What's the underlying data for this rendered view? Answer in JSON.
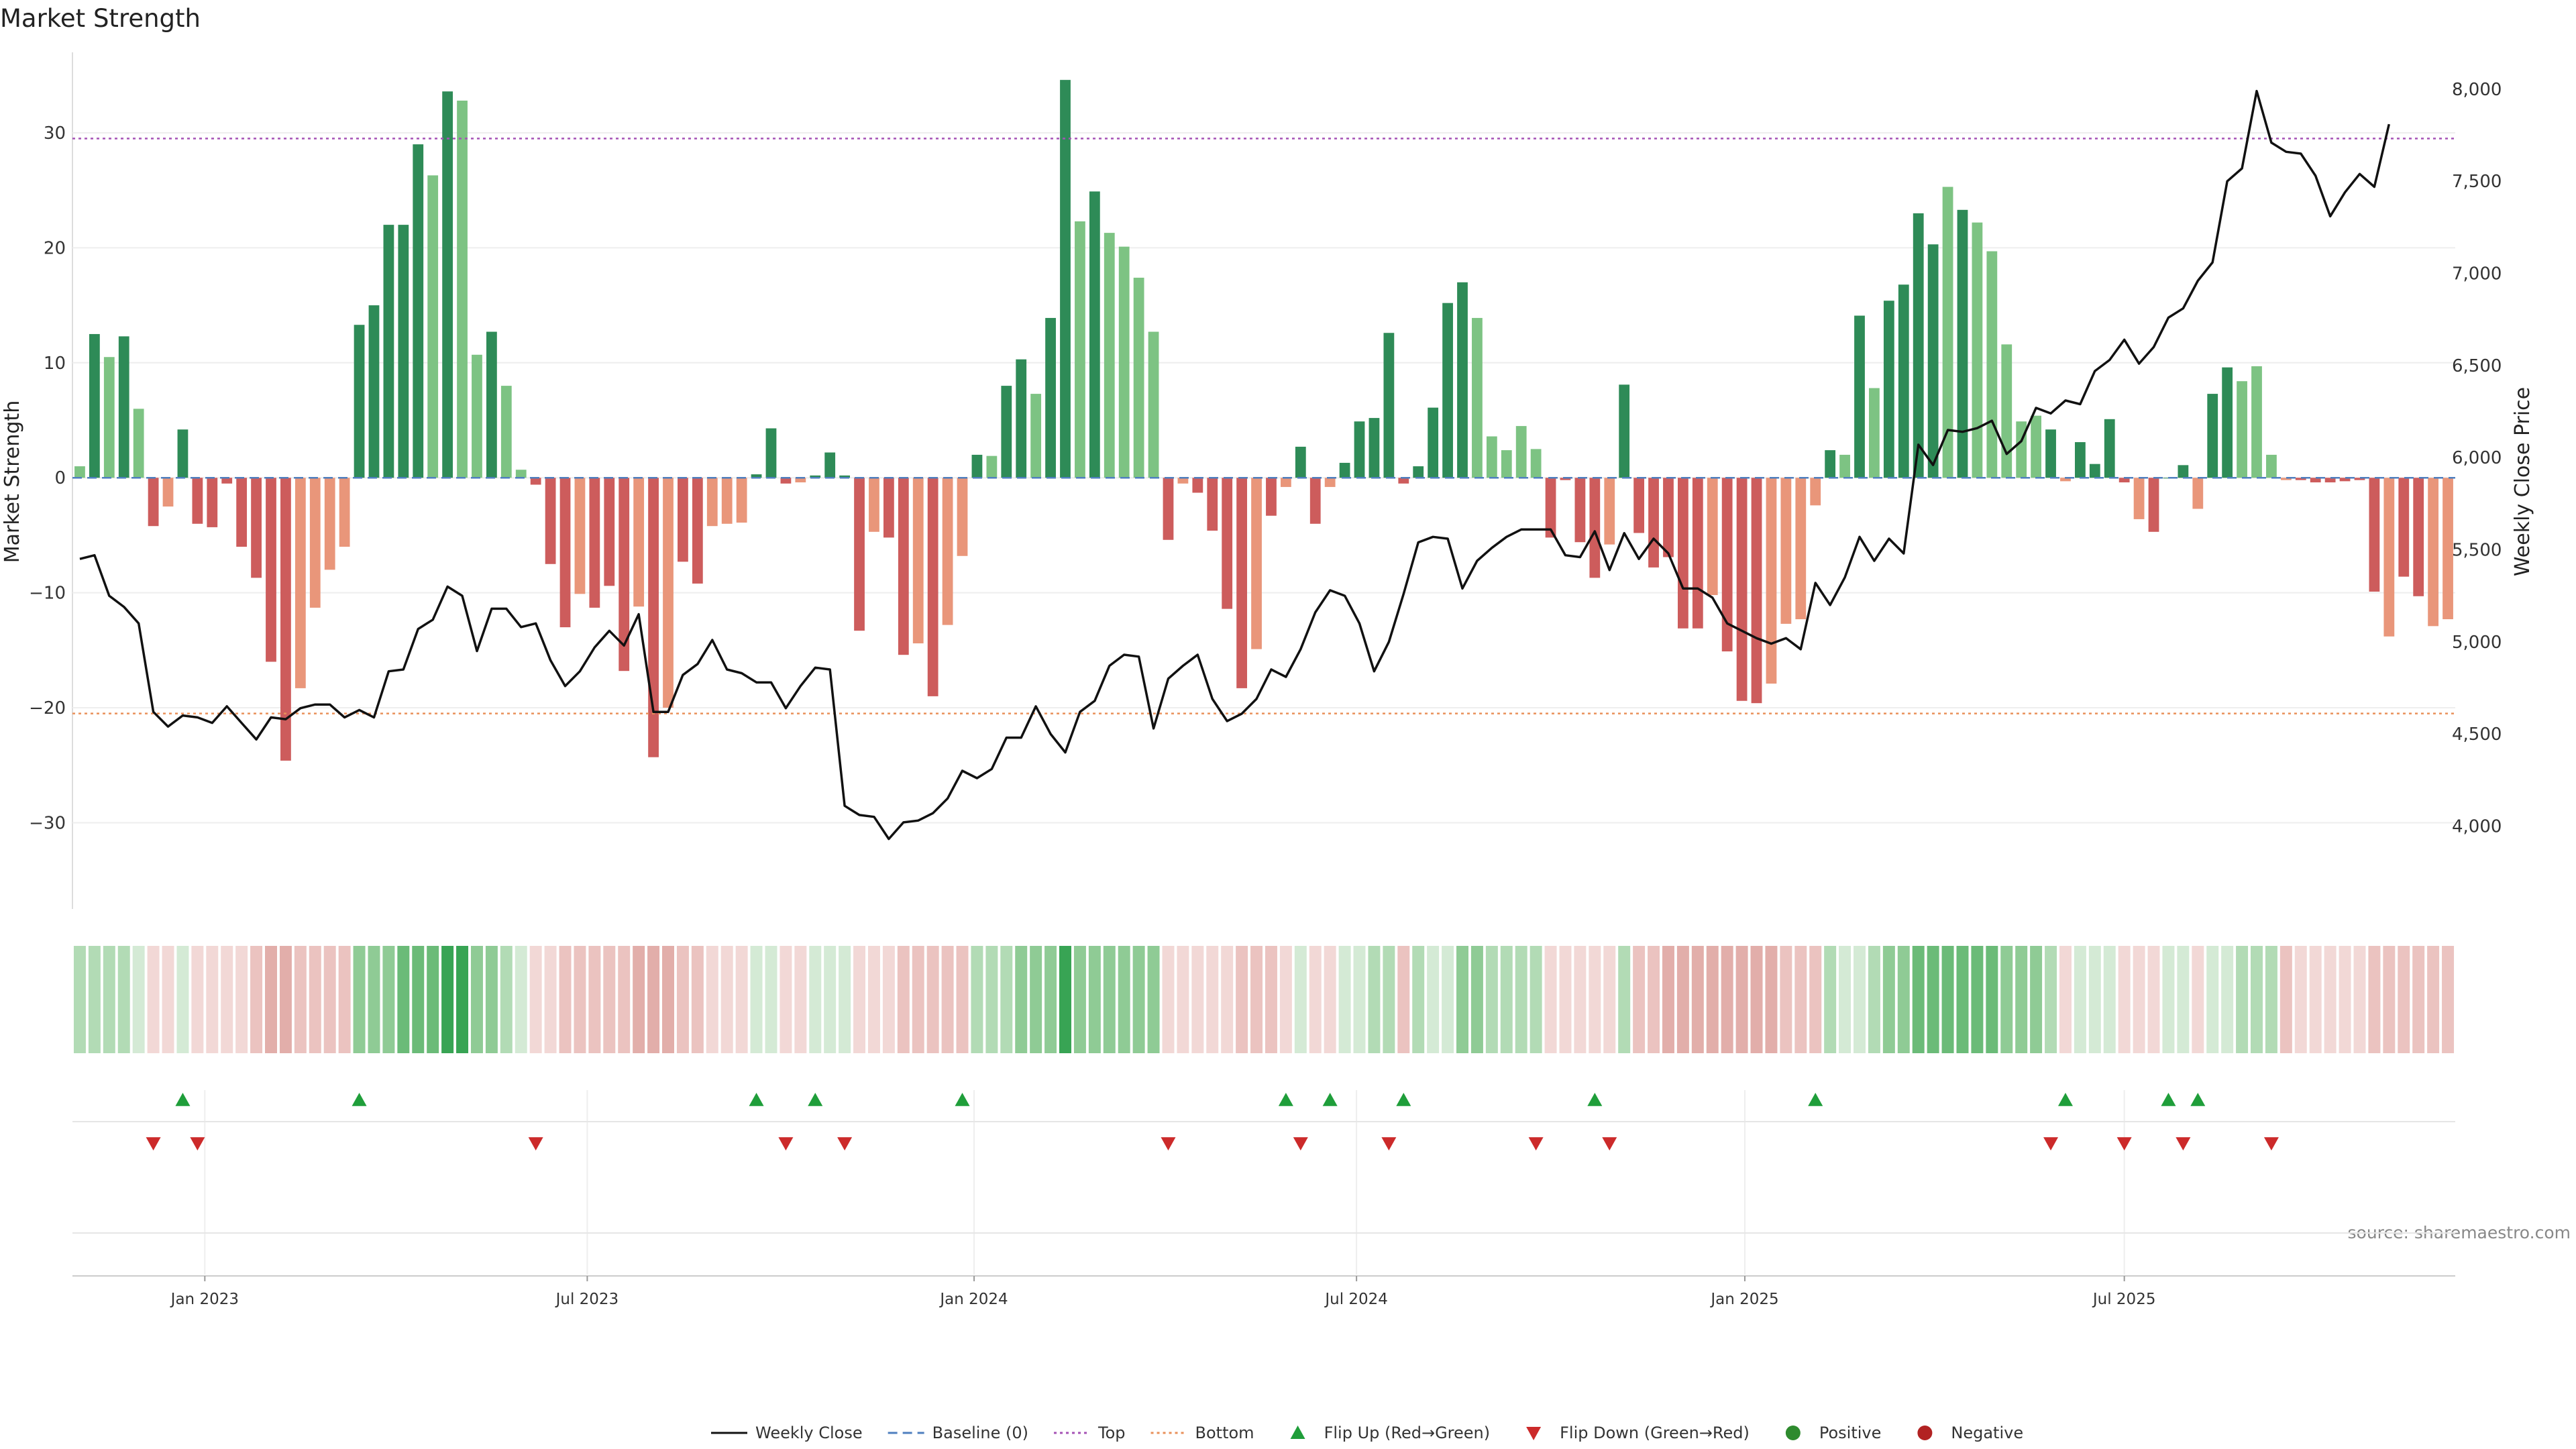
{
  "title": "Market Strength",
  "source": "source: sharemaestro.com",
  "colors": {
    "pos_strong": "#2e8b57",
    "pos_weak": "#7dc383",
    "neg_strong": "#cd5c5c",
    "neg_weak": "#e9967a",
    "price_line": "#111111",
    "baseline": "#4f7fbf",
    "top_line": "#a552b5",
    "bottom_line": "#e9905a",
    "flip_up": "#1f9e3a",
    "flip_down": "#cc2a2a",
    "positive_dot": "#2e8b2e",
    "negative_dot": "#b22222"
  },
  "chart_data": {
    "type": "bar",
    "title": "Market Strength",
    "ylabel_left": "Market Strength",
    "ylabel_right": "Weekly Close Price",
    "ylim_left": [
      -37.5,
      37
    ],
    "ylim_right": [
      3550,
      8200
    ],
    "yticks_left": [
      -30,
      -20,
      -10,
      0,
      10,
      20,
      30
    ],
    "ytick_labels_left": [
      "−30",
      "−20",
      "−10",
      "0",
      "10",
      "20",
      "30"
    ],
    "yticks_right": [
      4000,
      4500,
      5000,
      5500,
      6000,
      6500,
      7000,
      7500,
      8000
    ],
    "ytick_labels_right": [
      "4,000",
      "4,500",
      "5,000",
      "5,500",
      "6,000",
      "6,500",
      "7,000",
      "7,500",
      "8,000"
    ],
    "x_start_date": "2022-11-04",
    "x_ticks": [
      {
        "week": 8.5,
        "label": "Jan 2023"
      },
      {
        "week": 34.5,
        "label": "Jul 2023"
      },
      {
        "week": 60.8,
        "label": "Jan 2024"
      },
      {
        "week": 86.8,
        "label": "Jul 2024"
      },
      {
        "week": 113.2,
        "label": "Jan 2025"
      },
      {
        "week": 139.0,
        "label": "Jul 2025"
      }
    ],
    "top_level": 29.5,
    "bottom_level": -20.5,
    "strength": [
      1,
      12.5,
      10.5,
      12.3,
      6,
      -4.2,
      -2.5,
      4.2,
      -4,
      -4.3,
      -0.5,
      -6,
      -8.7,
      -16,
      -24.6,
      -18.3,
      -11.3,
      -8,
      -6,
      13.3,
      15,
      22,
      22,
      29,
      26.3,
      33.6,
      32.8,
      10.7,
      12.7,
      8,
      0.7,
      -0.6,
      -7.5,
      -13,
      -10.1,
      -11.3,
      -9.4,
      -16.8,
      -11.2,
      -24.3,
      -20,
      -7.3,
      -9.2,
      -4.2,
      -4,
      -3.9,
      0.3,
      4.3,
      -0.5,
      -0.4,
      0.2,
      2.2,
      0.2,
      -13.3,
      -4.7,
      -5.2,
      -15.4,
      -14.4,
      -19,
      -12.8,
      -6.8,
      2,
      1.9,
      8,
      10.3,
      7.3,
      13.9,
      34.6,
      22.3,
      24.9,
      21.3,
      20.1,
      17.4,
      12.7,
      -5.4,
      -0.5,
      -1.3,
      -4.6,
      -11.4,
      -18.3,
      -14.9,
      -3.3,
      -0.8,
      2.7,
      -4,
      -0.8,
      1.3,
      4.9,
      5.2,
      12.6,
      -0.5,
      1,
      6.1,
      15.2,
      17,
      13.9,
      3.6,
      2.4,
      4.5,
      2.5,
      -5.2,
      -0.2,
      -5.6,
      -8.7,
      -5.8,
      8.1,
      -4.8,
      -7.8,
      -6.9,
      -13.1,
      -13.1,
      -10.2,
      -15.1,
      -19.4,
      -19.6,
      -17.9,
      -12.7,
      -12.3,
      -2.4,
      2.4,
      2,
      14.1,
      7.8,
      15.4,
      16.8,
      23,
      20.3,
      25.3,
      23.3,
      22.2,
      19.7,
      11.6,
      4.9,
      5.4,
      4.2,
      -0.3,
      3.1,
      1.2,
      5.1,
      -0.4,
      -3.6,
      -4.7,
      0,
      1.1,
      -2.7,
      7.3,
      9.6,
      8.4,
      9.7,
      2,
      -0.2,
      -0.2,
      -0.4,
      -0.4,
      -0.3,
      -0.2,
      -9.9,
      -13.8,
      -8.6,
      -10.3,
      -12.9,
      -12.3
    ],
    "strength_shade": [
      0,
      1,
      0,
      1,
      0,
      1,
      0,
      1,
      1,
      1,
      1,
      1,
      1,
      1,
      1,
      0,
      0,
      0,
      0,
      1,
      1,
      1,
      1,
      1,
      0,
      1,
      0,
      0,
      1,
      0,
      0,
      1,
      1,
      1,
      0,
      1,
      1,
      1,
      0,
      1,
      0,
      1,
      1,
      0,
      0,
      0,
      1,
      1,
      1,
      0,
      1,
      1,
      1,
      1,
      0,
      1,
      1,
      0,
      1,
      0,
      0,
      1,
      0,
      1,
      1,
      0,
      1,
      1,
      0,
      1,
      0,
      0,
      0,
      0,
      1,
      0,
      1,
      1,
      1,
      1,
      0,
      1,
      0,
      1,
      1,
      0,
      1,
      1,
      1,
      1,
      1,
      1,
      1,
      1,
      1,
      0,
      0,
      0,
      0,
      0,
      1,
      1,
      1,
      1,
      0,
      1,
      1,
      1,
      1,
      1,
      1,
      0,
      1,
      1,
      1,
      0,
      0,
      0,
      0,
      1,
      0,
      1,
      0,
      1,
      1,
      1,
      1,
      0,
      1,
      0,
      0,
      0,
      0,
      0,
      1,
      0,
      1,
      1,
      1,
      1,
      0,
      1,
      1,
      1,
      0,
      1,
      1,
      0,
      0,
      0,
      0,
      1,
      1,
      1,
      1,
      1,
      1,
      0,
      1,
      1,
      0
    ],
    "weekly_close": [
      5450,
      5470,
      5250,
      5190,
      5100,
      4620,
      4540,
      4600,
      4590,
      4560,
      4650,
      4560,
      4470,
      4590,
      4580,
      4640,
      4660,
      4660,
      4590,
      4630,
      4590,
      4840,
      4850,
      5070,
      5120,
      5300,
      5250,
      4950,
      5180,
      5180,
      5080,
      5100,
      4900,
      4760,
      4840,
      4970,
      5060,
      4980,
      5150,
      4620,
      4620,
      4820,
      4880,
      5010,
      4850,
      4830,
      4780,
      4780,
      4640,
      4760,
      4860,
      4850,
      4110,
      4060,
      4050,
      3930,
      4020,
      4030,
      4070,
      4150,
      4300,
      4260,
      4310,
      4480,
      4480,
      4650,
      4500,
      4400,
      4620,
      4680,
      4870,
      4930,
      4920,
      4530,
      4800,
      4870,
      4930,
      4690,
      4570,
      4610,
      4690,
      4850,
      4810,
      4960,
      5160,
      5280,
      5250,
      5100,
      4840,
      5000,
      5260,
      5540,
      5570,
      5560,
      5290,
      5440,
      5510,
      5570,
      5610,
      5610,
      5610,
      5470,
      5460,
      5600,
      5390,
      5590,
      5450,
      5560,
      5480,
      5290,
      5290,
      5240,
      5100,
      5060,
      5020,
      4990,
      5020,
      4960,
      5320,
      5200,
      5350,
      5570,
      5440,
      5560,
      5480,
      6070,
      5960,
      6150,
      6140,
      6160,
      6200,
      6020,
      6090,
      6270,
      6240,
      6310,
      6290,
      6470,
      6530,
      6640,
      6510,
      6600,
      6760,
      6810,
      6960,
      7060,
      7500,
      7570,
      7990,
      7710,
      7660,
      7650,
      7530,
      7310,
      7440,
      7540,
      7470,
      7810
    ],
    "heat_levels": [
      2,
      2,
      2,
      2,
      1,
      1,
      1,
      1,
      1,
      1,
      1,
      1,
      2,
      3,
      3,
      2,
      2,
      2,
      2,
      3,
      3,
      3,
      4,
      4,
      4,
      5,
      5,
      3,
      3,
      2,
      1,
      1,
      1,
      2,
      2,
      2,
      2,
      2,
      3,
      3,
      3,
      2,
      2,
      1,
      1,
      1,
      1,
      1,
      1,
      1,
      1,
      1,
      1,
      1,
      1,
      1,
      2,
      2,
      2,
      2,
      2,
      2,
      2,
      2,
      3,
      3,
      3,
      5,
      3,
      3,
      3,
      3,
      3,
      3,
      1,
      1,
      1,
      1,
      1,
      2,
      2,
      2,
      1,
      1,
      1,
      1,
      1,
      1,
      2,
      2,
      2,
      2,
      1,
      1,
      3,
      3,
      2,
      2,
      2,
      2,
      1,
      1,
      1,
      1,
      1,
      2,
      2,
      2,
      3,
      3,
      3,
      3,
      3,
      3,
      3,
      3,
      2,
      2,
      2,
      2,
      1,
      1,
      2,
      3,
      3,
      4,
      4,
      4,
      4,
      4,
      4,
      3,
      3,
      3,
      2,
      1,
      1,
      1,
      1,
      1,
      1,
      1,
      1,
      1,
      1,
      1,
      1,
      2,
      2,
      2,
      2,
      1,
      1,
      1,
      1,
      1,
      2,
      2,
      2,
      2,
      2,
      2
    ],
    "flip_up_weeks": [
      7,
      19,
      46,
      50,
      60,
      82,
      85,
      90,
      103,
      118,
      135,
      142,
      144
    ],
    "flip_down_weeks": [
      5,
      8,
      31,
      48,
      52,
      74,
      83,
      89,
      99,
      104,
      134,
      139,
      143,
      149
    ]
  },
  "legend": [
    {
      "label": "Weekly Close",
      "marker": "line-solid"
    },
    {
      "label": "Baseline (0)",
      "marker": "line-dashed"
    },
    {
      "label": "Top",
      "marker": "line-dotted-top"
    },
    {
      "label": "Bottom",
      "marker": "line-dotted-bottom"
    },
    {
      "label": "Flip Up (Red→Green)",
      "marker": "triangle-up"
    },
    {
      "label": "Flip Down (Green→Red)",
      "marker": "triangle-down"
    },
    {
      "label": "Positive",
      "marker": "dot-green"
    },
    {
      "label": "Negative",
      "marker": "dot-red"
    }
  ]
}
